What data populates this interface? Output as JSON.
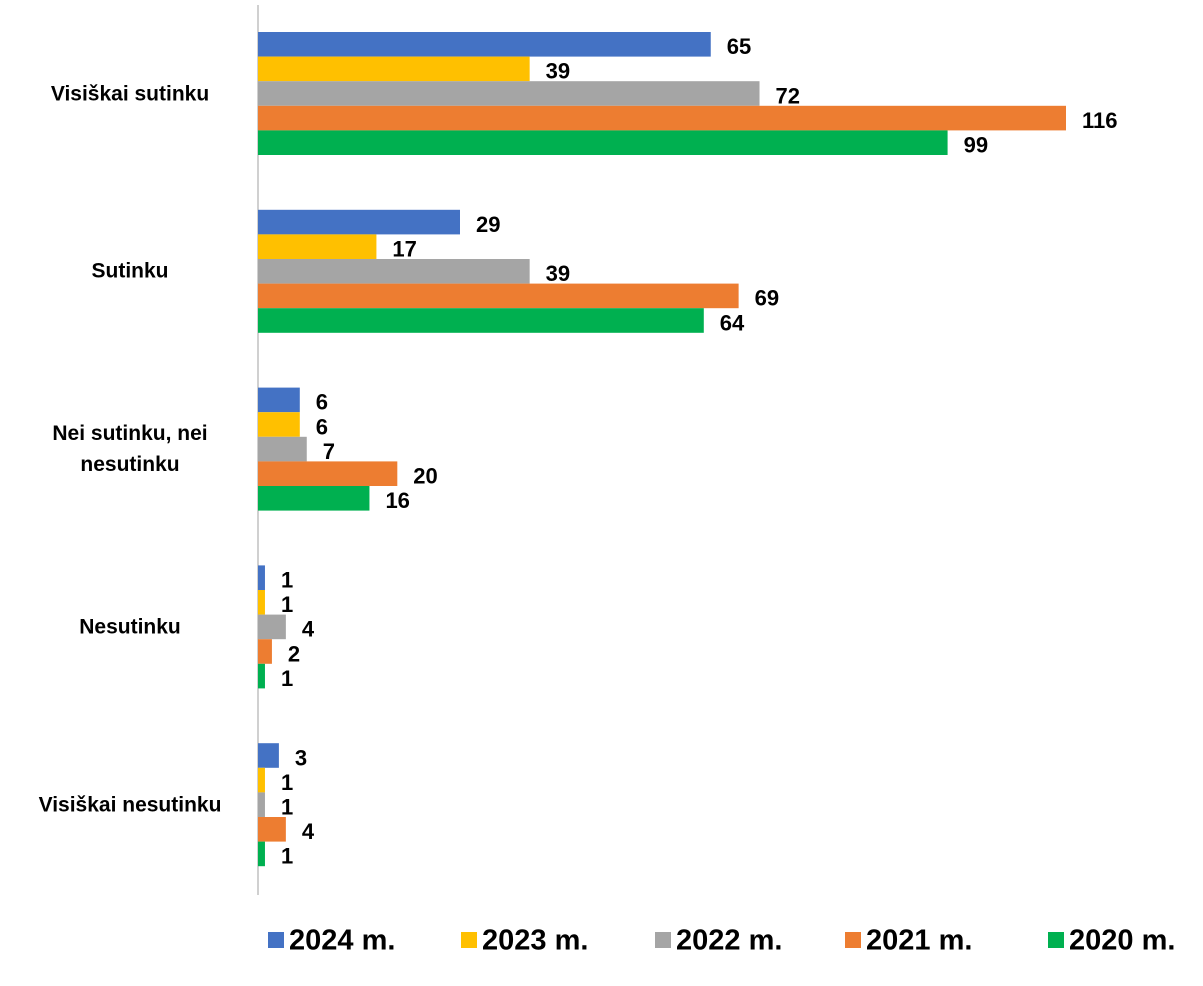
{
  "chart_data": {
    "type": "bar",
    "orientation": "horizontal",
    "categories": [
      "Visiškai sutinku",
      "Sutinku",
      "Nei sutinku, nei nesutinku",
      "Nesutinku",
      "Visiškai nesutinku"
    ],
    "series": [
      {
        "name": "2024 m.",
        "color": "#4472c4",
        "values": [
          65,
          29,
          6,
          1,
          3
        ]
      },
      {
        "name": "2023 m.",
        "color": "#ffc000",
        "values": [
          39,
          17,
          6,
          1,
          1
        ]
      },
      {
        "name": "2022 m.",
        "color": "#a5a5a5",
        "values": [
          72,
          39,
          7,
          4,
          1
        ]
      },
      {
        "name": "2021 m.",
        "color": "#ed7d31",
        "values": [
          116,
          69,
          20,
          2,
          4
        ]
      },
      {
        "name": "2020 m.",
        "color": "#00b050",
        "values": [
          99,
          64,
          16,
          1,
          1
        ]
      }
    ],
    "legend": "bottom"
  }
}
